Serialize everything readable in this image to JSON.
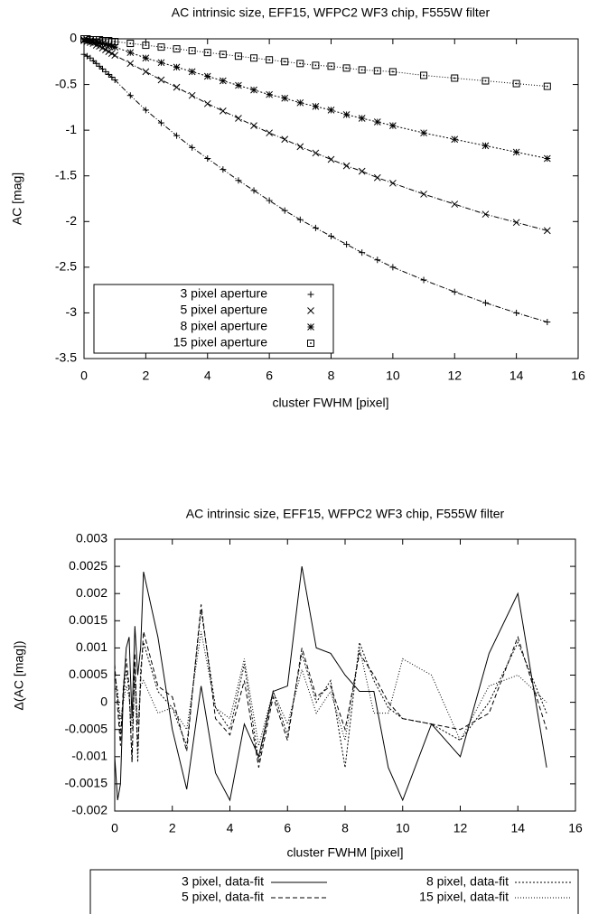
{
  "chart_data": [
    {
      "type": "scatter",
      "title": "AC intrinsic size, EFF15, WFPC2 WF3 chip, F555W filter",
      "xlabel": "cluster FWHM [pixel]",
      "ylabel": "AC [mag]",
      "x": [
        0,
        0.1,
        0.2,
        0.3,
        0.4,
        0.5,
        0.6,
        0.7,
        0.8,
        0.9,
        1.0,
        1.5,
        2,
        2.5,
        3,
        3.5,
        4,
        4.5,
        5,
        5.5,
        6,
        6.5,
        7,
        7.5,
        8,
        8.5,
        9,
        9.5,
        10,
        11,
        12,
        13,
        14,
        15
      ],
      "xlim": [
        0,
        16
      ],
      "xticks": [
        0,
        2,
        4,
        6,
        8,
        10,
        12,
        14,
        16
      ],
      "ylim": [
        -3.5,
        0
      ],
      "yticks": [
        0,
        -0.5,
        -1,
        -1.5,
        -2,
        -2.5,
        -3,
        -3.5
      ],
      "legend": "bottom-left",
      "series": [
        {
          "name": "3 pixel aperture",
          "color": "#000000",
          "marker": "plus",
          "dash": "6,2,1,2",
          "values": [
            -0.17,
            -0.19,
            -0.21,
            -0.24,
            -0.27,
            -0.3,
            -0.33,
            -0.36,
            -0.39,
            -0.42,
            -0.45,
            -0.62,
            -0.78,
            -0.92,
            -1.06,
            -1.19,
            -1.31,
            -1.43,
            -1.55,
            -1.66,
            -1.77,
            -1.88,
            -1.98,
            -2.07,
            -2.16,
            -2.25,
            -2.34,
            -2.42,
            -2.5,
            -2.64,
            -2.77,
            -2.89,
            -3.0,
            -3.1
          ]
        },
        {
          "name": "5 pixel aperture",
          "color": "#000000",
          "marker": "cross",
          "dash": "6,2,1,2",
          "values": [
            -0.02,
            -0.03,
            -0.04,
            -0.05,
            -0.07,
            -0.08,
            -0.1,
            -0.12,
            -0.14,
            -0.16,
            -0.18,
            -0.27,
            -0.36,
            -0.45,
            -0.53,
            -0.62,
            -0.71,
            -0.79,
            -0.87,
            -0.95,
            -1.03,
            -1.1,
            -1.18,
            -1.25,
            -1.32,
            -1.39,
            -1.45,
            -1.52,
            -1.58,
            -1.7,
            -1.81,
            -1.92,
            -2.01,
            -2.1
          ]
        },
        {
          "name": "8 pixel aperture",
          "color": "#000000",
          "marker": "star",
          "dash": "2,2",
          "values": [
            -0.01,
            -0.01,
            -0.02,
            -0.03,
            -0.03,
            -0.04,
            -0.05,
            -0.06,
            -0.07,
            -0.08,
            -0.09,
            -0.15,
            -0.21,
            -0.26,
            -0.31,
            -0.36,
            -0.41,
            -0.46,
            -0.51,
            -0.56,
            -0.61,
            -0.65,
            -0.7,
            -0.74,
            -0.78,
            -0.83,
            -0.87,
            -0.91,
            -0.95,
            -1.03,
            -1.1,
            -1.17,
            -1.24,
            -1.31
          ]
        },
        {
          "name": "15 pixel aperture",
          "color": "#000000",
          "marker": "square",
          "dash": "1,2",
          "values": [
            0,
            0,
            -0.01,
            -0.01,
            -0.01,
            -0.01,
            -0.02,
            -0.02,
            -0.02,
            -0.03,
            -0.03,
            -0.05,
            -0.07,
            -0.09,
            -0.11,
            -0.13,
            -0.15,
            -0.17,
            -0.19,
            -0.21,
            -0.23,
            -0.25,
            -0.27,
            -0.29,
            -0.3,
            -0.32,
            -0.34,
            -0.35,
            -0.36,
            -0.4,
            -0.43,
            -0.46,
            -0.49,
            -0.52
          ]
        }
      ]
    },
    {
      "type": "line",
      "title": "AC intrinsic size, EFF15, WFPC2 WF3 chip, F555W filter",
      "xlabel": "cluster FWHM [pixel]",
      "ylabel": "Δ(AC [mag])",
      "x": [
        0,
        0.1,
        0.2,
        0.3,
        0.4,
        0.5,
        0.6,
        0.7,
        0.8,
        0.9,
        1.0,
        1.5,
        2,
        2.5,
        3,
        3.5,
        4,
        4.5,
        5,
        5.5,
        6,
        6.5,
        7,
        7.5,
        8,
        8.5,
        9,
        9.5,
        10,
        11,
        12,
        13,
        14,
        15
      ],
      "xlim": [
        0,
        16
      ],
      "xticks": [
        0,
        2,
        4,
        6,
        8,
        10,
        12,
        14,
        16
      ],
      "ylim": [
        -0.002,
        0.003
      ],
      "yticks": [
        0.003,
        0.0025,
        0.002,
        0.0015,
        0.001,
        0.0005,
        0,
        -0.0005,
        -0.001,
        -0.0015,
        -0.002
      ],
      "legend": "below",
      "series": [
        {
          "name": "3 pixel, data-fit",
          "color": "#000000",
          "dash": "none",
          "values": [
            -0.001,
            -0.0018,
            -0.0015,
            0.0002,
            0.001,
            0.0012,
            -0.0003,
            0.0014,
            0.0005,
            0.001,
            0.0024,
            0.0012,
            -0.0005,
            -0.0016,
            0.0003,
            -0.0013,
            -0.0018,
            -0.0004,
            -0.001,
            0.0002,
            0.0003,
            0.0025,
            0.001,
            0.0009,
            0.0005,
            0.0002,
            0.0002,
            -0.0012,
            -0.0018,
            -0.0004,
            -0.001,
            0.0009,
            0.002,
            -0.0012
          ]
        },
        {
          "name": "5 pixel, data-fit",
          "color": "#000000",
          "dash": "5,3",
          "values": [
            0.0007,
            -0.0001,
            -0.0008,
            0.0003,
            0.0008,
            0.0003,
            -0.0011,
            0.0009,
            -0.0009,
            0.0004,
            0.0013,
            0.0003,
            0.0001,
            -0.0009,
            0.0018,
            -0.0003,
            -0.0006,
            0.0004,
            -0.0012,
            0.0001,
            -0.0007,
            0.001,
            0.0001,
            0.0003,
            -0.0005,
            0.0009,
            0.0005,
            0,
            -0.0003,
            -0.0004,
            -0.0005,
            -0.0002,
            0.0012,
            -0.0005
          ]
        },
        {
          "name": "8 pixel, data-fit",
          "color": "#000000",
          "dash": "2,2",
          "values": [
            0.0005,
            0.0002,
            -0.0006,
            0.0001,
            0.0006,
            0.0002,
            -0.0011,
            0.0007,
            -0.0011,
            0.0006,
            0.0011,
            0.0002,
            -0.0001,
            -0.0008,
            0.0017,
            -0.0001,
            -0.0005,
            0.0007,
            -0.0011,
            0.0002,
            -0.0006,
            0.0009,
            0,
            0.0004,
            -0.0012,
            0.0011,
            0.0004,
            -0.0001,
            -0.0003,
            -0.0004,
            -0.0007,
            0,
            0.0011,
            -0.0002
          ]
        },
        {
          "name": "15 pixel, data-fit",
          "color": "#000000",
          "dash": "1,2",
          "values": [
            0.0003,
            0.0001,
            -0.0003,
            0,
            0.0003,
            0.0001,
            -0.0005,
            0.0004,
            -0.0004,
            0.0003,
            0.0004,
            -0.0002,
            -0.0001,
            -0.0005,
            0.0013,
            -0.0001,
            -0.0003,
            0.0008,
            -0.0008,
            0.0002,
            -0.0004,
            0.0006,
            -0.0002,
            0.0002,
            -0.0007,
            0.001,
            -0.0002,
            -0.0002,
            0.0008,
            0.0005,
            -0.0007,
            0.0003,
            0.0005,
            0
          ]
        }
      ]
    }
  ]
}
